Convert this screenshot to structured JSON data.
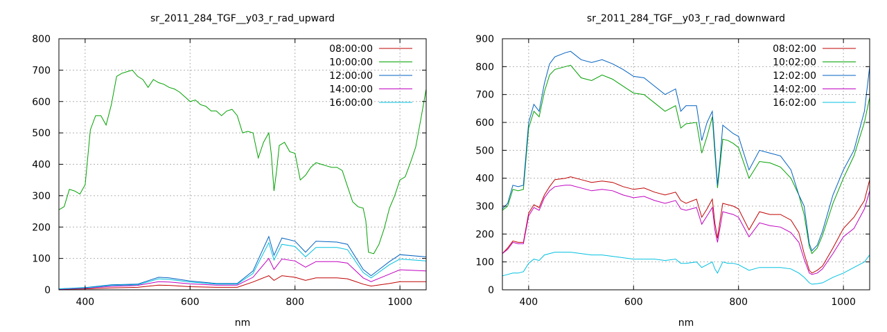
{
  "chart_data": [
    {
      "type": "line",
      "title": "sr_2011_284_TGF__y03_r_rad_upward",
      "xlabel": "nm",
      "ylabel": "",
      "xlim": [
        350,
        1050
      ],
      "ylim": [
        0,
        800
      ],
      "xticks": [
        400,
        600,
        800,
        1000
      ],
      "yticks": [
        0,
        100,
        200,
        300,
        400,
        500,
        600,
        700,
        800
      ],
      "xtick_labels": [
        "400",
        "600",
        "800",
        "1000"
      ],
      "ytick_labels": [
        "0",
        "100",
        "200",
        "300",
        "400",
        "500",
        "600",
        "700",
        "800"
      ],
      "grid": true,
      "legend_position": "top-right",
      "series": [
        {
          "name": "08:00:00",
          "color": "#c00000",
          "x": [
            350,
            400,
            450,
            500,
            540,
            560,
            600,
            650,
            690,
            720,
            750,
            760,
            775,
            800,
            820,
            840,
            880,
            900,
            930,
            945,
            980,
            1000,
            1050
          ],
          "values": [
            2,
            3,
            6,
            8,
            15,
            14,
            10,
            8,
            8,
            25,
            45,
            30,
            45,
            40,
            30,
            38,
            38,
            35,
            18,
            12,
            20,
            26,
            26
          ]
        },
        {
          "name": "10:00:00",
          "color": "#00a000",
          "x": [
            350,
            360,
            370,
            380,
            390,
            400,
            410,
            420,
            430,
            440,
            450,
            460,
            470,
            480,
            490,
            500,
            510,
            520,
            530,
            540,
            550,
            560,
            570,
            580,
            590,
            600,
            610,
            620,
            630,
            640,
            650,
            660,
            670,
            680,
            690,
            700,
            710,
            720,
            730,
            740,
            750,
            755,
            760,
            765,
            770,
            780,
            790,
            800,
            810,
            820,
            830,
            840,
            850,
            860,
            870,
            880,
            890,
            900,
            910,
            920,
            930,
            935,
            940,
            950,
            960,
            970,
            980,
            990,
            1000,
            1010,
            1020,
            1030,
            1040,
            1050
          ],
          "values": [
            255,
            265,
            320,
            315,
            305,
            335,
            510,
            555,
            555,
            525,
            590,
            680,
            690,
            695,
            700,
            680,
            670,
            645,
            670,
            660,
            655,
            645,
            640,
            630,
            615,
            600,
            605,
            590,
            585,
            570,
            570,
            555,
            570,
            575,
            555,
            500,
            505,
            500,
            420,
            470,
            500,
            430,
            315,
            380,
            460,
            470,
            440,
            435,
            350,
            365,
            390,
            405,
            400,
            395,
            390,
            390,
            380,
            330,
            280,
            265,
            260,
            220,
            120,
            115,
            145,
            195,
            260,
            300,
            350,
            360,
            405,
            455,
            545,
            640
          ]
        },
        {
          "name": "12:00:00",
          "color": "#0060c0",
          "x": [
            350,
            400,
            450,
            500,
            540,
            560,
            600,
            650,
            690,
            720,
            750,
            760,
            775,
            800,
            820,
            840,
            880,
            900,
            930,
            945,
            980,
            1000,
            1050
          ],
          "values": [
            3,
            7,
            16,
            18,
            40,
            38,
            28,
            20,
            20,
            60,
            170,
            110,
            165,
            155,
            120,
            155,
            152,
            145,
            65,
            45,
            90,
            112,
            105
          ]
        },
        {
          "name": "14:00:00",
          "color": "#c000c0",
          "x": [
            350,
            400,
            450,
            500,
            540,
            560,
            600,
            650,
            690,
            720,
            750,
            760,
            775,
            800,
            820,
            840,
            880,
            900,
            930,
            945,
            980,
            1000,
            1050
          ],
          "values": [
            2,
            5,
            11,
            14,
            26,
            25,
            19,
            15,
            15,
            40,
            100,
            65,
            98,
            92,
            72,
            90,
            90,
            85,
            38,
            26,
            50,
            64,
            60
          ]
        },
        {
          "name": "16:00:00",
          "color": "#00c0e0",
          "x": [
            350,
            400,
            450,
            500,
            540,
            560,
            600,
            650,
            690,
            720,
            750,
            760,
            775,
            800,
            820,
            840,
            880,
            900,
            930,
            945,
            980,
            1000,
            1050
          ],
          "values": [
            3,
            6,
            14,
            16,
            35,
            33,
            25,
            18,
            18,
            52,
            150,
            95,
            145,
            138,
            105,
            135,
            135,
            128,
            55,
            38,
            80,
            98,
            92
          ]
        }
      ]
    },
    {
      "type": "line",
      "title": "sr_2011_284_TGF__y03_r_rad_downward",
      "xlabel": "nm",
      "ylabel": "",
      "xlim": [
        350,
        1050
      ],
      "ylim": [
        0,
        900
      ],
      "xticks": [
        400,
        600,
        800,
        1000
      ],
      "yticks": [
        0,
        100,
        200,
        300,
        400,
        500,
        600,
        700,
        800,
        900
      ],
      "xtick_labels": [
        "400",
        "600",
        "800",
        "1000"
      ],
      "ytick_labels": [
        "0",
        "100",
        "200",
        "300",
        "400",
        "500",
        "600",
        "700",
        "800",
        "900"
      ],
      "grid": true,
      "legend_position": "top-right",
      "series": [
        {
          "name": "08:02:00",
          "color": "#c00000",
          "x": [
            350,
            360,
            370,
            380,
            390,
            400,
            410,
            420,
            430,
            440,
            450,
            470,
            480,
            500,
            520,
            540,
            560,
            580,
            600,
            620,
            640,
            660,
            680,
            690,
            700,
            720,
            730,
            740,
            750,
            755,
            760,
            765,
            770,
            780,
            790,
            800,
            820,
            840,
            860,
            880,
            900,
            915,
            925,
            935,
            940,
            950,
            960,
            980,
            1000,
            1020,
            1040,
            1050
          ],
          "values": [
            130,
            150,
            175,
            170,
            170,
            275,
            305,
            295,
            340,
            370,
            395,
            400,
            405,
            395,
            385,
            390,
            385,
            370,
            360,
            365,
            350,
            340,
            350,
            320,
            310,
            325,
            260,
            290,
            325,
            240,
            185,
            250,
            310,
            305,
            300,
            290,
            215,
            280,
            270,
            270,
            250,
            205,
            130,
            70,
            60,
            70,
            85,
            150,
            220,
            260,
            320,
            395
          ]
        },
        {
          "name": "10:02:00",
          "color": "#00a000",
          "x": [
            350,
            360,
            370,
            380,
            390,
            400,
            410,
            420,
            430,
            440,
            450,
            470,
            480,
            500,
            520,
            540,
            560,
            580,
            600,
            620,
            640,
            660,
            680,
            690,
            700,
            720,
            730,
            740,
            750,
            755,
            760,
            765,
            770,
            780,
            790,
            800,
            820,
            840,
            860,
            880,
            900,
            915,
            925,
            935,
            940,
            950,
            960,
            980,
            1000,
            1020,
            1040,
            1050
          ],
          "values": [
            285,
            300,
            360,
            355,
            360,
            580,
            640,
            620,
            710,
            770,
            790,
            800,
            805,
            760,
            750,
            770,
            755,
            730,
            705,
            700,
            670,
            640,
            660,
            580,
            595,
            600,
            490,
            550,
            620,
            490,
            365,
            450,
            540,
            535,
            525,
            510,
            400,
            460,
            455,
            440,
            400,
            340,
            270,
            155,
            130,
            150,
            195,
            310,
            400,
            480,
            600,
            690
          ]
        },
        {
          "name": "12:02:00",
          "color": "#0060c0",
          "x": [
            350,
            360,
            370,
            380,
            390,
            400,
            410,
            420,
            430,
            440,
            450,
            470,
            480,
            500,
            520,
            540,
            560,
            580,
            600,
            620,
            640,
            660,
            680,
            690,
            700,
            720,
            730,
            740,
            750,
            755,
            760,
            765,
            770,
            780,
            790,
            800,
            820,
            840,
            860,
            880,
            900,
            915,
            925,
            935,
            940,
            950,
            960,
            980,
            1000,
            1020,
            1040,
            1050
          ],
          "values": [
            290,
            310,
            375,
            370,
            375,
            600,
            665,
            640,
            740,
            810,
            835,
            850,
            855,
            825,
            815,
            825,
            810,
            790,
            765,
            760,
            730,
            700,
            720,
            640,
            660,
            660,
            535,
            600,
            640,
            510,
            375,
            470,
            590,
            575,
            560,
            550,
            430,
            500,
            490,
            480,
            430,
            340,
            300,
            165,
            140,
            160,
            210,
            340,
            430,
            500,
            640,
            800
          ]
        },
        {
          "name": "14:02:00",
          "color": "#c000c0",
          "x": [
            350,
            360,
            370,
            380,
            390,
            400,
            410,
            420,
            430,
            440,
            450,
            470,
            480,
            500,
            520,
            540,
            560,
            580,
            600,
            620,
            640,
            660,
            680,
            690,
            700,
            720,
            730,
            740,
            750,
            755,
            760,
            765,
            770,
            780,
            790,
            800,
            820,
            840,
            860,
            880,
            900,
            915,
            925,
            935,
            940,
            950,
            960,
            980,
            1000,
            1020,
            1040,
            1050
          ],
          "values": [
            130,
            145,
            170,
            165,
            165,
            265,
            295,
            285,
            330,
            355,
            370,
            375,
            375,
            365,
            355,
            360,
            355,
            340,
            330,
            335,
            320,
            310,
            320,
            290,
            285,
            295,
            235,
            265,
            295,
            215,
            170,
            225,
            280,
            275,
            270,
            260,
            190,
            240,
            230,
            225,
            205,
            170,
            110,
            60,
            55,
            60,
            75,
            130,
            190,
            220,
            290,
            355
          ]
        },
        {
          "name": "16:02:00",
          "color": "#00c0e0",
          "x": [
            350,
            360,
            370,
            380,
            390,
            400,
            410,
            420,
            430,
            440,
            450,
            470,
            480,
            500,
            520,
            540,
            560,
            580,
            600,
            620,
            640,
            660,
            680,
            690,
            700,
            720,
            730,
            740,
            750,
            755,
            760,
            765,
            770,
            780,
            790,
            800,
            820,
            840,
            860,
            880,
            900,
            915,
            925,
            935,
            940,
            950,
            960,
            980,
            1000,
            1020,
            1040,
            1050
          ],
          "values": [
            50,
            55,
            60,
            60,
            65,
            95,
            110,
            105,
            125,
            130,
            135,
            135,
            135,
            130,
            125,
            125,
            120,
            115,
            110,
            110,
            110,
            105,
            110,
            95,
            95,
            100,
            80,
            90,
            100,
            75,
            60,
            80,
            100,
            95,
            95,
            90,
            70,
            80,
            80,
            80,
            75,
            60,
            45,
            25,
            20,
            22,
            25,
            45,
            60,
            80,
            100,
            125
          ]
        }
      ]
    }
  ]
}
